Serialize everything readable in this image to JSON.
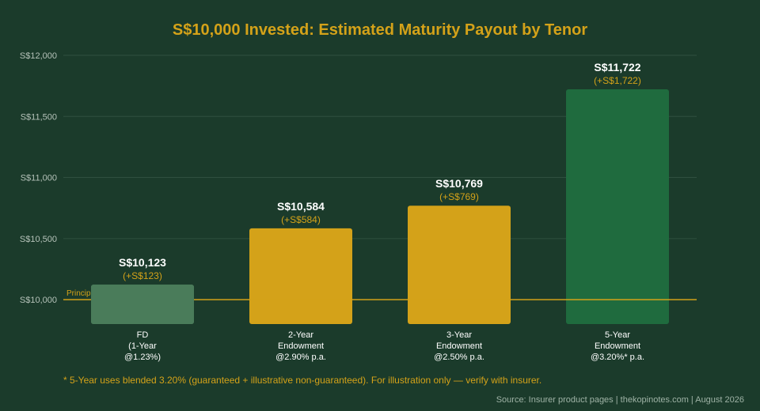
{
  "title": "S$10,000 Invested: Estimated Maturity Payout by Tenor",
  "footnote": "* 5-Year uses blended 3.20% (guaranteed + illustrative non-guaranteed). For illustration only — verify with insurer.",
  "source": "Source: Insurer product pages | thekopinotes.com | August 2026",
  "colors": {
    "background": "#1b3b2b",
    "title": "#d4a219",
    "gain_label": "#d4a219",
    "value_label": "#ffffff",
    "principal_line": "#d4a219",
    "grid": "#2f4f3f",
    "axis_text": "#b5c2b9"
  },
  "chart_data": {
    "type": "bar",
    "categories": [
      [
        "FD",
        "(1-Year",
        "@1.23%)"
      ],
      [
        "2-Year",
        "Endowment",
        "@2.90% p.a."
      ],
      [
        "3-Year",
        "Endowment",
        "@2.50% p.a."
      ],
      [
        "5-Year",
        "Endowment",
        "@3.20%* p.a."
      ]
    ],
    "values": [
      10123,
      10584,
      10769,
      11722
    ],
    "value_labels": [
      "S$10,123",
      "S$10,584",
      "S$10,769",
      "S$11,722"
    ],
    "gain_labels": [
      "(+S$123)",
      "(+S$584)",
      "(+S$769)",
      "(+S$1,722)"
    ],
    "bar_colors": [
      "#4a7c5a",
      "#d4a219",
      "#d4a219",
      "#1f6b3e"
    ],
    "ylim": [
      9800,
      12000
    ],
    "yticks": [
      10000,
      10500,
      11000,
      11500,
      12000
    ],
    "ytick_labels": [
      "S$10,000",
      "S$10,500",
      "S$11,000",
      "S$11,500",
      "S$12,000"
    ],
    "reference_line": {
      "value": 10000,
      "label": "Principal S$10,000"
    },
    "grid": true
  }
}
